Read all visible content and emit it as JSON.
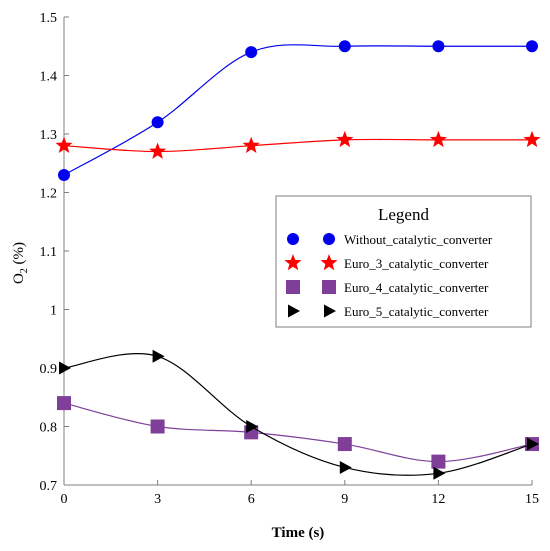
{
  "chart_data": {
    "type": "line",
    "xlabel": "Time (s)",
    "ylabel": {
      "main": "O",
      "sub": "2",
      "rest": " (%)"
    },
    "x": [
      0,
      3,
      6,
      9,
      12,
      15
    ],
    "xticks": [
      "0",
      "3",
      "6",
      "9",
      "12",
      "15"
    ],
    "xlim": [
      0,
      15
    ],
    "ylim": [
      0.7,
      1.5
    ],
    "yticks": [
      "0.7",
      "0.8",
      "0.9",
      "1",
      "1.1",
      "1.2",
      "1.3",
      "1.4",
      "1.5"
    ],
    "ytick_values": [
      0.7,
      0.8,
      0.9,
      1.0,
      1.1,
      1.2,
      1.3,
      1.4,
      1.5
    ],
    "grid": false,
    "legend_title": "Legend",
    "legend_position": "right",
    "series": [
      {
        "name": "Without_catalytic_converter",
        "values": [
          1.23,
          1.32,
          1.44,
          1.45,
          1.45,
          1.45
        ],
        "color": "#0000ee",
        "marker": "circle"
      },
      {
        "name": "Euro_3_catalytic_converter",
        "values": [
          1.28,
          1.27,
          1.28,
          1.29,
          1.29,
          1.29
        ],
        "color": "#ff0000",
        "marker": "star"
      },
      {
        "name": "Euro_4_catalytic_converter",
        "values": [
          0.84,
          0.8,
          0.79,
          0.77,
          0.74,
          0.77
        ],
        "color": "#7f3f98",
        "marker": "square"
      },
      {
        "name": "Euro_5_catalytic_converter",
        "values": [
          0.9,
          0.92,
          0.8,
          0.73,
          0.72,
          0.77
        ],
        "color": "#000000",
        "marker": "triangle-right"
      }
    ]
  }
}
